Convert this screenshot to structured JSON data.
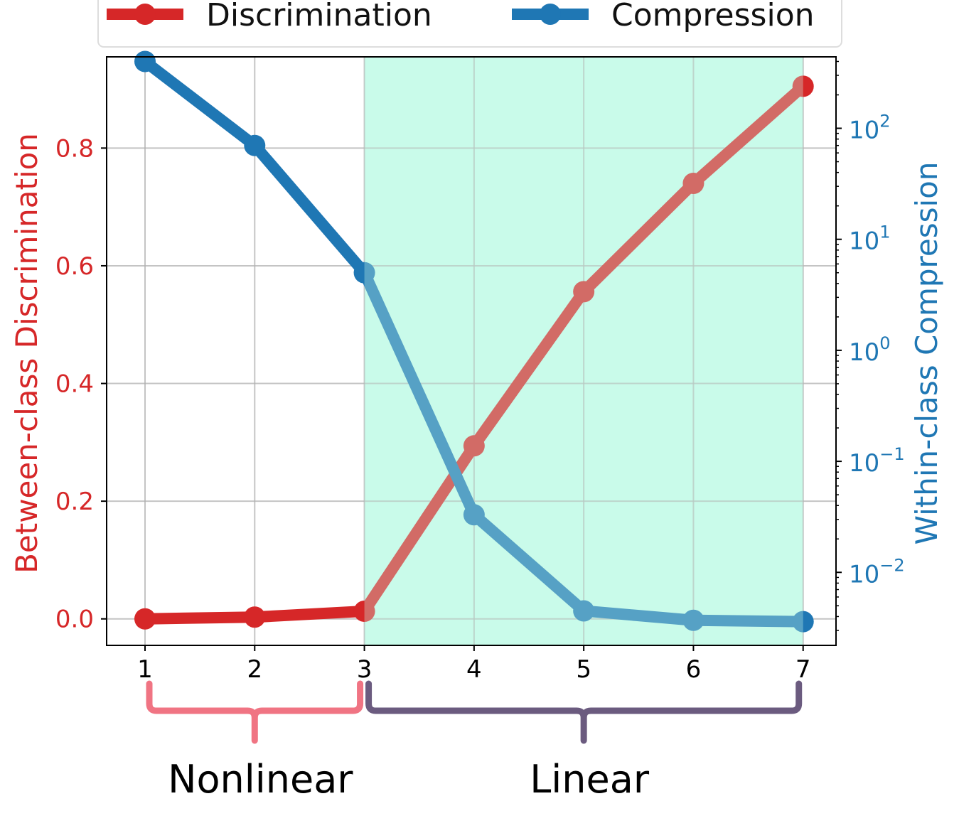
{
  "chart_data": {
    "type": "line",
    "x": [
      1,
      2,
      3,
      4,
      5,
      6,
      7
    ],
    "xlim": [
      0.65,
      7.3
    ],
    "series": [
      {
        "name": "Discrimination",
        "axis": "left",
        "color": "#d62728",
        "values": [
          0.0,
          0.003,
          0.013,
          0.294,
          0.556,
          0.74,
          0.905
        ]
      },
      {
        "name": "Compression",
        "axis": "right",
        "color": "#1f77b4",
        "values": [
          400,
          70,
          5,
          0.033,
          0.0045,
          0.0037,
          0.0036
        ]
      }
    ],
    "ylabel_left": "Between-class Discrimination",
    "ylim_left": [
      -0.045,
      0.955
    ],
    "yticks_left": [
      "0.0",
      "0.2",
      "0.4",
      "0.6",
      "0.8"
    ],
    "ylabel_right": "Within-class Compression",
    "yscale_right": "log",
    "ylim_right": [
      0.0022,
      440
    ],
    "yticks_right": [
      {
        "base": "10",
        "exp": "−2"
      },
      {
        "base": "10",
        "exp": "−1"
      },
      {
        "base": "10",
        "exp": "0"
      },
      {
        "base": "10",
        "exp": "1"
      },
      {
        "base": "10",
        "exp": "2"
      }
    ],
    "shaded_region": {
      "x_from": 3,
      "x_to": 7,
      "color": "#c9fbea"
    },
    "grid": true,
    "legend": "top",
    "annotations": [
      {
        "label": "Nonlinear",
        "x_from": 1,
        "x_to": 3,
        "color": "#f07483"
      },
      {
        "label": "Linear",
        "x_from": 3,
        "x_to": 7,
        "color": "#6b5b7f"
      }
    ]
  }
}
